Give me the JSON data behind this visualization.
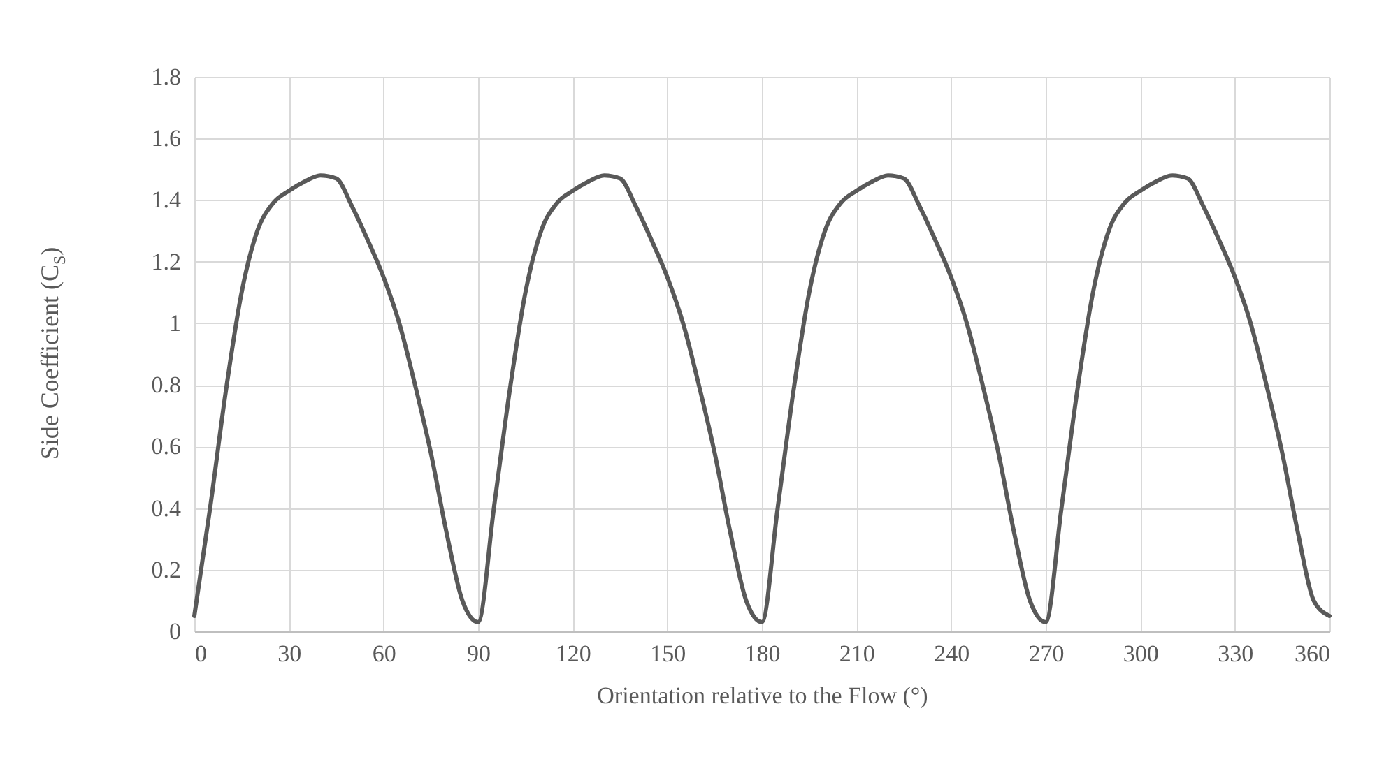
{
  "chart_data": {
    "type": "line",
    "xlabel": "Orientation relative to the Flow (°)",
    "ylabel": "Side  Coefficient (C$_{S}$)",
    "x": [
      0,
      5,
      10,
      15,
      20,
      25,
      30,
      35,
      40,
      45,
      50,
      55,
      60,
      65,
      70,
      75,
      80,
      85,
      90,
      95,
      100,
      105,
      110,
      115,
      120,
      125,
      130,
      135,
      140,
      145,
      150,
      155,
      160,
      165,
      170,
      175,
      180,
      185,
      190,
      195,
      200,
      205,
      210,
      215,
      220,
      225,
      230,
      235,
      240,
      245,
      250,
      255,
      260,
      265,
      270,
      275,
      280,
      285,
      290,
      295,
      300,
      305,
      310,
      315,
      320,
      325,
      330,
      335,
      340,
      345,
      350,
      355,
      360
    ],
    "series": [
      {
        "color": "#595959",
        "values": [
          0.05,
          0.4,
          0.78,
          1.1,
          1.3,
          1.39,
          1.43,
          1.46,
          1.48,
          1.47,
          1.38,
          1.27,
          1.15,
          1.0,
          0.8,
          0.58,
          0.32,
          0.1,
          0.03,
          0.4,
          0.78,
          1.1,
          1.3,
          1.39,
          1.43,
          1.46,
          1.48,
          1.47,
          1.38,
          1.27,
          1.15,
          1.0,
          0.8,
          0.58,
          0.32,
          0.1,
          0.03,
          0.4,
          0.78,
          1.1,
          1.3,
          1.39,
          1.43,
          1.46,
          1.48,
          1.47,
          1.38,
          1.27,
          1.15,
          1.0,
          0.8,
          0.58,
          0.32,
          0.1,
          0.03,
          0.4,
          0.78,
          1.1,
          1.3,
          1.39,
          1.43,
          1.46,
          1.48,
          1.47,
          1.38,
          1.27,
          1.15,
          1.0,
          0.8,
          0.58,
          0.32,
          0.1,
          0.05
        ]
      }
    ],
    "xlim": [
      0,
      360
    ],
    "xticks": [
      0,
      30,
      60,
      90,
      120,
      150,
      180,
      210,
      240,
      270,
      300,
      330,
      360
    ],
    "ylim": [
      0,
      1.8
    ],
    "yticks": [
      0,
      0.2,
      0.4,
      0.6,
      0.8,
      1,
      1.2,
      1.4,
      1.6,
      1.8
    ],
    "grid": true,
    "marker": "none",
    "line_style": "solid"
  }
}
